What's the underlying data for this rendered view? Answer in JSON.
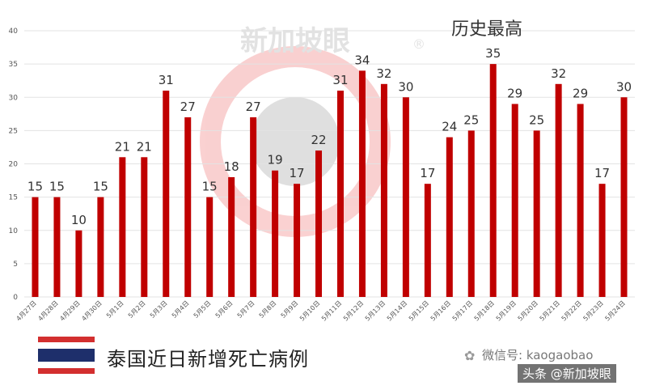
{
  "chart_data": {
    "type": "bar",
    "categories": [
      "4月27日",
      "4月28日",
      "4月29日",
      "4月30日",
      "5月1日",
      "5月2日",
      "5月3日",
      "5月4日",
      "5月5日",
      "5月6日",
      "5月7日",
      "5月8日",
      "5月9日",
      "5月10日",
      "5月11日",
      "5月12日",
      "5月13日",
      "5月14日",
      "5月15日",
      "5月16日",
      "5月17日",
      "5月18日",
      "5月19日",
      "5月20日",
      "5月21日",
      "5月22日",
      "5月23日",
      "5月24日"
    ],
    "values": [
      15,
      15,
      10,
      15,
      21,
      21,
      31,
      27,
      15,
      18,
      27,
      19,
      17,
      22,
      31,
      34,
      32,
      30,
      17,
      24,
      25,
      35,
      29,
      25,
      32,
      29,
      17,
      30
    ],
    "ylim": [
      0,
      40
    ],
    "yticks": [
      0,
      5,
      10,
      15,
      20,
      25,
      30,
      35,
      40
    ],
    "grid": true,
    "bar_color": "#c00000",
    "annotation": "历史最高",
    "title": "泰国近日新增死亡病例"
  },
  "watermark": {
    "text": "新加坡眼",
    "mark": "®"
  },
  "credits": {
    "wechat": "微信号: kaogaobao",
    "toutiao": "头条 @新加坡眼"
  },
  "icons": {
    "flag": "thailand-flag-icon",
    "wechat": "wechat-icon"
  }
}
